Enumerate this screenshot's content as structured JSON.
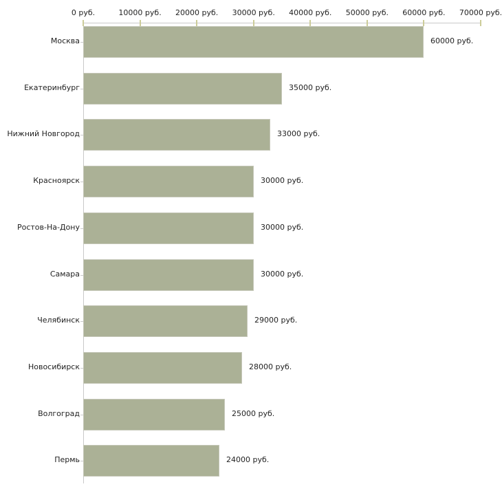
{
  "chart_data": {
    "type": "bar",
    "orientation": "horizontal",
    "title": "",
    "unit": "руб.",
    "categories": [
      "Москва",
      "Екатеринбург",
      "Нижний Новгород",
      "Красноярск",
      "Ростов-На-Дону",
      "Самара",
      "Челябинск",
      "Новосибирск",
      "Волгоград",
      "Пермь"
    ],
    "values": [
      60000,
      35000,
      33000,
      30000,
      30000,
      30000,
      29000,
      28000,
      25000,
      24000
    ],
    "value_labels": [
      "60000 руб.",
      "35000 руб.",
      "33000 руб.",
      "30000 руб.",
      "30000 руб.",
      "30000 руб.",
      "29000 руб.",
      "28000 руб.",
      "25000 руб.",
      "24000 руб."
    ],
    "x_ticks": {
      "values": [
        0,
        10000,
        20000,
        30000,
        40000,
        50000,
        60000,
        70000
      ],
      "labels": [
        "0 руб.",
        "10000 руб.",
        "20000 руб.",
        "30000 руб.",
        "40000 руб.",
        "50000 руб.",
        "60000 руб.",
        "70000 руб."
      ]
    },
    "xlim": [
      0,
      70000
    ],
    "xlabel": "",
    "ylabel": "",
    "grid": false,
    "legend": false,
    "axis_position": "top",
    "colors": {
      "bar_fill": "#abb196",
      "bar_border": "#c5c7b8",
      "axis_line": "#c9c9c9",
      "tick_mark": "#cccc99",
      "text": "#222222",
      "background": "#ffffff"
    }
  }
}
